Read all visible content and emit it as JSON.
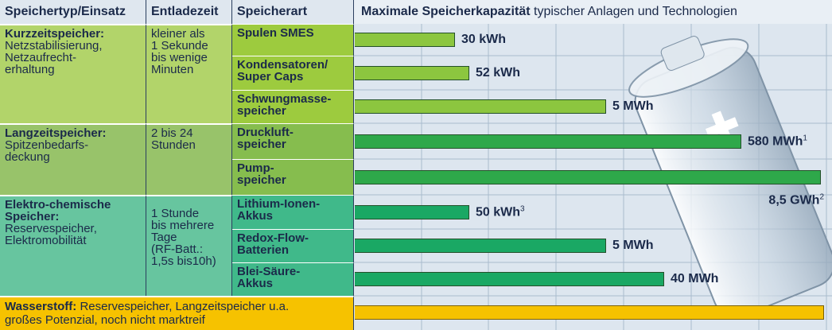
{
  "header": {
    "col1": "Speichertyp/Einsatz",
    "col2": "Entladezeit",
    "col3": "Speicherart",
    "chart_bold": "Maximale Speicherkapazität",
    "chart_rest": " typischer Anlagen und Technologien"
  },
  "groups": [
    {
      "type": "Kurzzeitspeicher:",
      "use": "Netzstabilisierung,\nNetzaufrecht-\nerhaltung",
      "discharge": "kleiner als\n1 Sekunde\nbis wenige\nMinuten",
      "items": [
        {
          "name": "Spulen SMES",
          "capacity": "30 kWh"
        },
        {
          "name": "Kondensatoren/\nSuper Caps",
          "capacity": "52 kWh"
        },
        {
          "name": "Schwungmasse-\nspeicher",
          "capacity": "5 MWh"
        }
      ]
    },
    {
      "type": "Langzeitspeicher:",
      "use": "Spitzenbedarfs-\ndeckung",
      "discharge": "2 bis 24\nStunden",
      "items": [
        {
          "name": "Druckluft-\nspeicher",
          "capacity": "580 MWh",
          "note": "1"
        },
        {
          "name": "Pump-\nspeicher",
          "capacity": "8,5 GWh",
          "note": "2"
        }
      ]
    },
    {
      "type": "Elektro-chemische\nSpeicher:",
      "use": "Reservespeicher,\nElektromobilität",
      "discharge": "1 Stunde\nbis mehrere\nTage\n(RF-Batt.:\n1,5s bis10h)",
      "items": [
        {
          "name": "Lithium-Ionen-\nAkkus",
          "capacity": "50 kWh",
          "note": "3"
        },
        {
          "name": "Redox-Flow-\nBatterien",
          "capacity": "5 MWh"
        },
        {
          "name": "Blei-Säure-\nAkkus",
          "capacity": "40 MWh"
        }
      ]
    }
  ],
  "hydrogen": {
    "type": "Wasserstoff:",
    "text": " Reservespeicher, Langzeitspeicher u.a.\ngroßes Potenzial, noch nicht marktreif"
  }
}
